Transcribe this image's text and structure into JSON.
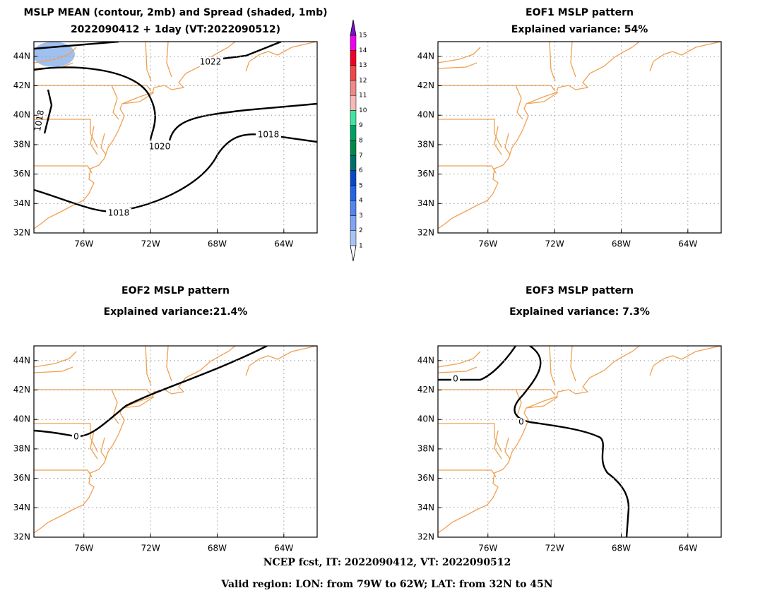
{
  "panels": [
    {
      "title": [
        "MSLP MEAN (contour, 2mb) and Spread (shaded, 1mb)",
        "2022090412 + 1day (VT:2022090512)"
      ],
      "contour_labels": [
        "1022",
        "1020",
        "1018",
        "1018",
        "1018"
      ]
    },
    {
      "title": [
        "EOF1 MSLP pattern",
        "Explained variance: 54%"
      ]
    },
    {
      "title": [
        "EOF2 MSLP pattern",
        "Explained variance:21.4%"
      ],
      "contour_labels": [
        "0"
      ]
    },
    {
      "title": [
        "EOF3 MSLP pattern",
        "Explained variance: 7.3%"
      ],
      "contour_labels": [
        "0",
        "0"
      ]
    }
  ],
  "axes": {
    "xlim": [
      -79,
      -62
    ],
    "ylim": [
      32,
      45
    ],
    "xticks": [
      {
        "value": -76,
        "label": "76W"
      },
      {
        "value": -72,
        "label": "72W"
      },
      {
        "value": -68,
        "label": "68W"
      },
      {
        "value": -64,
        "label": "64W"
      }
    ],
    "yticks": [
      {
        "value": 32,
        "label": "32N"
      },
      {
        "value": 34,
        "label": "34N"
      },
      {
        "value": 36,
        "label": "36N"
      },
      {
        "value": 38,
        "label": "38N"
      },
      {
        "value": 40,
        "label": "40N"
      },
      {
        "value": 42,
        "label": "42N"
      },
      {
        "value": 44,
        "label": "44N"
      }
    ],
    "grid": true
  },
  "colorbar": {
    "levels": [
      1,
      2,
      3,
      4,
      5,
      6,
      7,
      8,
      9,
      10,
      11,
      12,
      13,
      14,
      15
    ],
    "colors": [
      "#ffffff",
      "#a8c4f4",
      "#80a4f0",
      "#5484ee",
      "#2664e4",
      "#0a48c8",
      "#00706e",
      "#008848",
      "#00a064",
      "#40e4a0",
      "#f8b8b8",
      "#f08888",
      "#f04848",
      "#f00028",
      "#f000f0",
      "#8010d0"
    ]
  },
  "footer": [
    "NCEP fcst, IT: 2022090412, VT: 2022090512",
    "Valid region: LON: from 79W to 62W; LAT: from 32N to 45N"
  ]
}
